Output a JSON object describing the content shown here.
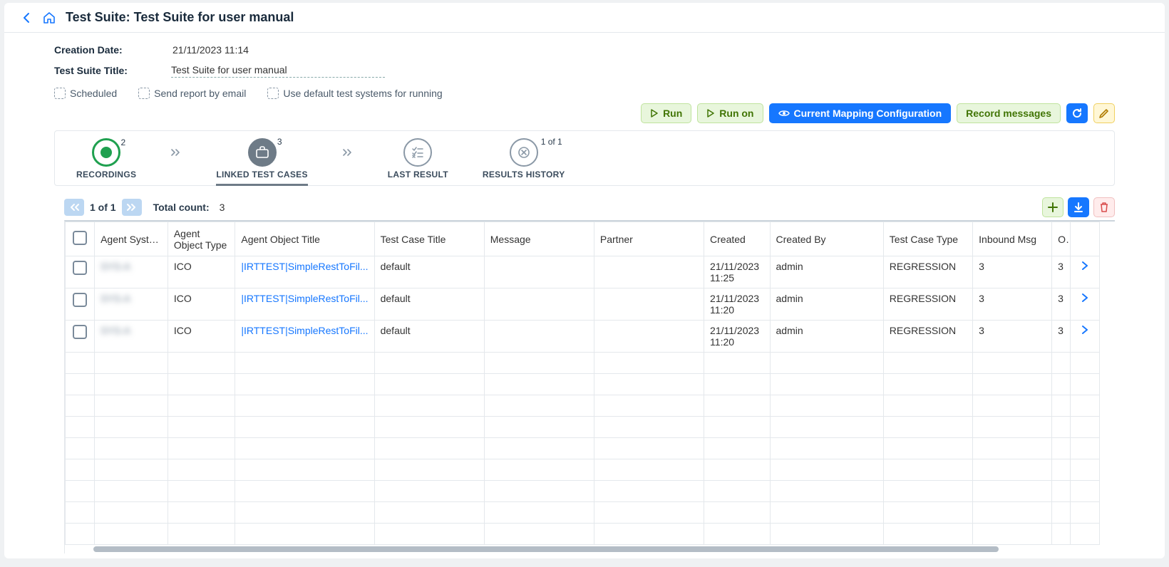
{
  "header": {
    "title": "Test Suite: Test Suite for user manual"
  },
  "info": {
    "creation_label": "Creation Date:",
    "creation_value": "21/11/2023 11:14",
    "title_label": "Test Suite Title:",
    "title_value": "Test Suite for user manual"
  },
  "options": {
    "scheduled": "Scheduled",
    "send_report": "Send report by email",
    "use_default": "Use default test systems for running"
  },
  "actions": {
    "run": "Run",
    "run_on": "Run on",
    "mapping": "Current Mapping Configuration",
    "record": "Record messages"
  },
  "tabs": {
    "recordings": {
      "label": "RECORDINGS",
      "badge": "2"
    },
    "linked": {
      "label": "LINKED TEST CASES",
      "badge": "3"
    },
    "last_result": {
      "label": "LAST RESULT"
    },
    "history": {
      "label": "RESULTS HISTORY",
      "badge": "1 of 1"
    }
  },
  "pagination": {
    "text": "1 of 1",
    "total_label": "Total count:",
    "total_value": "3"
  },
  "table": {
    "columns": {
      "agent_system": "Agent System",
      "agent_object_type": "Agent Object Type",
      "agent_object_title": "Agent Object Title",
      "test_case_title": "Test Case Title",
      "message": "Message",
      "partner": "Partner",
      "created": "Created",
      "created_by": "Created By",
      "test_case_type": "Test Case Type",
      "inbound_msg": "Inbound Msg",
      "outbound": "O"
    },
    "column_widths": {
      "checkbox": 40,
      "agent_system": 100,
      "agent_object_type": 92,
      "agent_object_title": 190,
      "test_case_title": 150,
      "message": 150,
      "partner": 150,
      "created": 90,
      "created_by": 155,
      "test_case_type": 122,
      "inbound_msg": 108,
      "outbound": 25,
      "expand": 40
    },
    "rows": [
      {
        "agent_system": "SYS-A",
        "agent_object_type": "ICO",
        "agent_object_title": "|IRTTEST|SimpleRestToFil...",
        "test_case_title": "default",
        "message": "",
        "partner": "",
        "created": "21/11/2023 11:25",
        "created_by": "admin",
        "test_case_type": "REGRESSION",
        "inbound_msg": "3",
        "outbound": "3"
      },
      {
        "agent_system": "SYS-A",
        "agent_object_type": "ICO",
        "agent_object_title": "|IRTTEST|SimpleRestToFil...",
        "test_case_title": "default",
        "message": "",
        "partner": "",
        "created": "21/11/2023 11:20",
        "created_by": "admin",
        "test_case_type": "REGRESSION",
        "inbound_msg": "3",
        "outbound": "3"
      },
      {
        "agent_system": "SYS-A",
        "agent_object_type": "ICO",
        "agent_object_title": "|IRTTEST|SimpleRestToFil...",
        "test_case_title": "default",
        "message": "",
        "partner": "",
        "created": "21/11/2023 11:20",
        "created_by": "admin",
        "test_case_type": "REGRESSION",
        "inbound_msg": "3",
        "outbound": "3"
      }
    ],
    "empty_rows": 9
  },
  "colors": {
    "primary_blue": "#1677ff",
    "green_bg": "#e8f6dc",
    "green_border": "#bfe39d",
    "green_text": "#417505",
    "yellow_bg": "#fff7d6",
    "yellow_border": "#f0d060",
    "red_bg": "#ffecec",
    "red_text": "#d94c4c",
    "pager_bg": "#bcd7f2",
    "grey_border": "#e4e8ec",
    "tab_active": "#6e7b87",
    "tab_green": "#1fa04f"
  }
}
